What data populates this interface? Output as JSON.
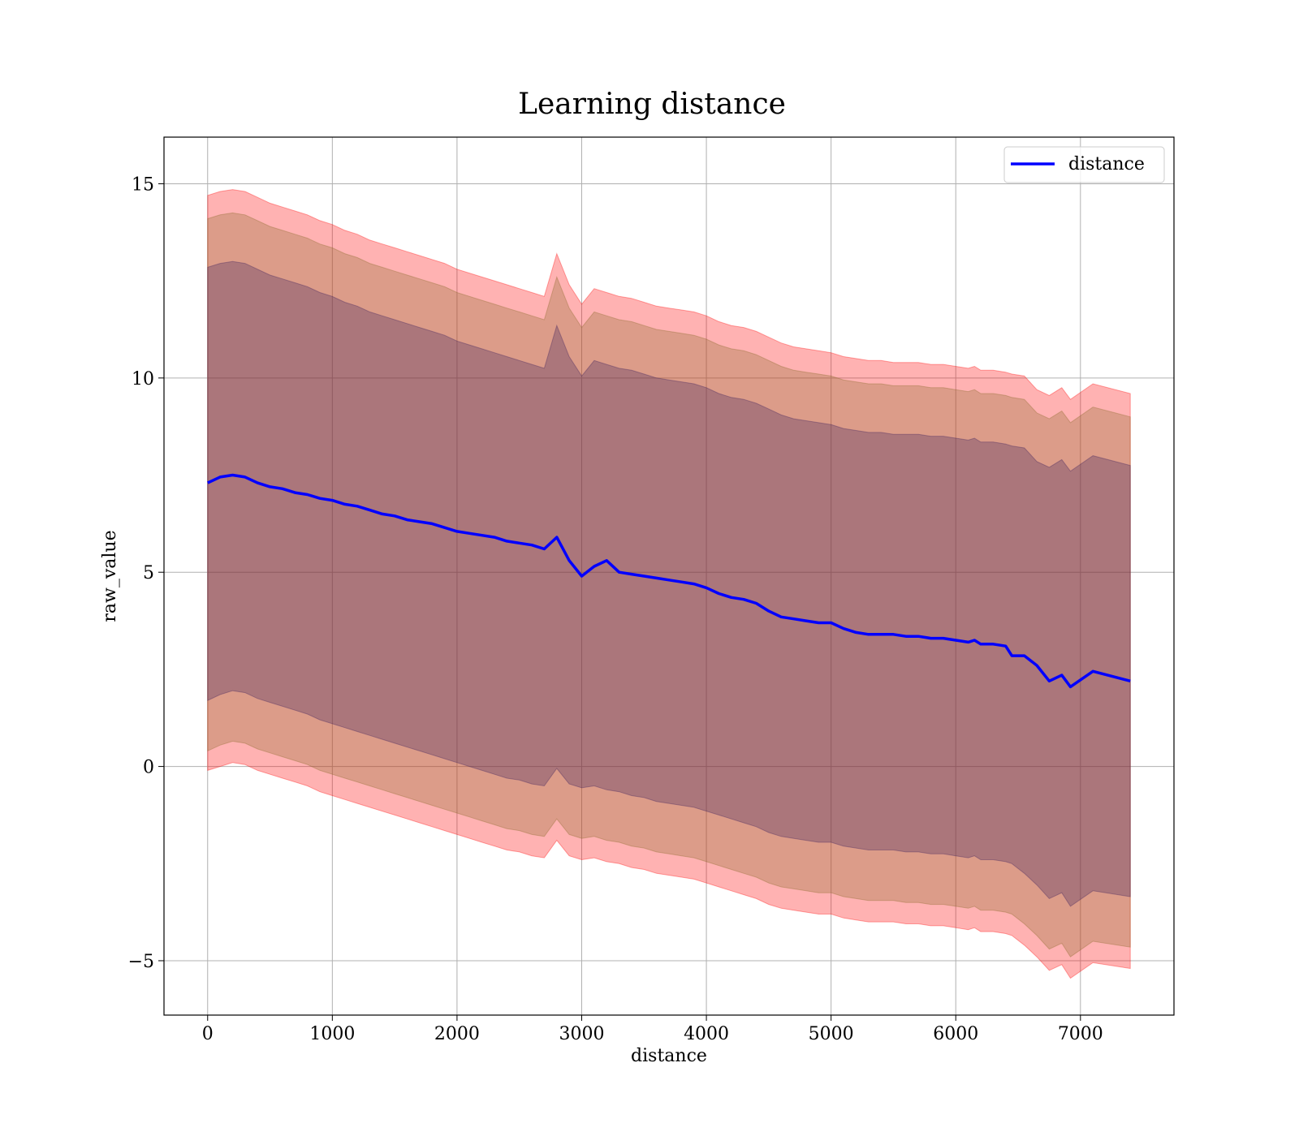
{
  "chart_data": {
    "type": "line",
    "title": "Learning distance",
    "xlabel": "distance",
    "ylabel": "raw_value",
    "xlim": [
      -350,
      7750
    ],
    "ylim": [
      -6.4,
      16.2
    ],
    "xticks": [
      0,
      1000,
      2000,
      3000,
      4000,
      5000,
      6000,
      7000
    ],
    "yticks": [
      -5,
      0,
      5,
      10,
      15
    ],
    "xtick_labels": [
      "0",
      "1000",
      "2000",
      "3000",
      "4000",
      "5000",
      "6000",
      "7000"
    ],
    "ytick_labels": [
      "−5",
      "0",
      "5",
      "10",
      "15"
    ],
    "grid": true,
    "legend_position": "top-right",
    "colors": {
      "line": "#0000ff",
      "band": "#ff0000",
      "band_inner": "#3d1f5c",
      "band_mid": "#8a6a2a",
      "grid": "#b0b0b0"
    },
    "series": [
      {
        "name": "distance",
        "x": [
          0,
          100,
          200,
          300,
          400,
          500,
          600,
          700,
          800,
          900,
          1000,
          1100,
          1200,
          1300,
          1400,
          1500,
          1600,
          1700,
          1800,
          1900,
          2000,
          2100,
          2200,
          2300,
          2400,
          2500,
          2600,
          2700,
          2800,
          2900,
          3000,
          3100,
          3200,
          3300,
          3400,
          3500,
          3600,
          3700,
          3800,
          3900,
          4000,
          4100,
          4200,
          4300,
          4400,
          4500,
          4600,
          4700,
          4800,
          4900,
          5000,
          5100,
          5200,
          5300,
          5400,
          5500,
          5600,
          5700,
          5800,
          5900,
          6000,
          6100,
          6150,
          6200,
          6300,
          6400,
          6450,
          6550,
          6650,
          6750,
          6850,
          6920,
          7100,
          7400
        ],
        "y": [
          7.3,
          7.45,
          7.5,
          7.45,
          7.3,
          7.2,
          7.15,
          7.05,
          7.0,
          6.9,
          6.85,
          6.75,
          6.7,
          6.6,
          6.5,
          6.45,
          6.35,
          6.3,
          6.25,
          6.15,
          6.05,
          6.0,
          5.95,
          5.9,
          5.8,
          5.75,
          5.7,
          5.6,
          5.9,
          5.3,
          4.9,
          5.15,
          5.3,
          5.0,
          4.95,
          4.9,
          4.85,
          4.8,
          4.75,
          4.7,
          4.6,
          4.45,
          4.35,
          4.3,
          4.2,
          4.0,
          3.85,
          3.8,
          3.75,
          3.7,
          3.7,
          3.55,
          3.45,
          3.4,
          3.4,
          3.4,
          3.35,
          3.35,
          3.3,
          3.3,
          3.25,
          3.2,
          3.25,
          3.15,
          3.15,
          3.1,
          2.85,
          2.85,
          2.6,
          2.2,
          2.35,
          2.05,
          2.45,
          2.2
        ]
      }
    ],
    "bands": [
      {
        "label": "outer",
        "upper": [
          14.7,
          14.8,
          14.85,
          14.8,
          14.65,
          14.5,
          14.4,
          14.3,
          14.2,
          14.05,
          13.95,
          13.8,
          13.7,
          13.55,
          13.45,
          13.35,
          13.25,
          13.15,
          13.05,
          12.95,
          12.8,
          12.7,
          12.6,
          12.5,
          12.4,
          12.3,
          12.2,
          12.1,
          13.2,
          12.4,
          11.9,
          12.3,
          12.2,
          12.1,
          12.05,
          11.95,
          11.85,
          11.8,
          11.75,
          11.7,
          11.6,
          11.45,
          11.35,
          11.3,
          11.2,
          11.05,
          10.9,
          10.8,
          10.75,
          10.7,
          10.65,
          10.55,
          10.5,
          10.45,
          10.45,
          10.4,
          10.4,
          10.4,
          10.35,
          10.35,
          10.3,
          10.25,
          10.3,
          10.2,
          10.2,
          10.15,
          10.1,
          10.05,
          9.7,
          9.55,
          9.75,
          9.45,
          9.85,
          9.6
        ],
        "lower": [
          -0.1,
          0.0,
          0.1,
          0.05,
          -0.1,
          -0.2,
          -0.3,
          -0.4,
          -0.5,
          -0.65,
          -0.75,
          -0.85,
          -0.95,
          -1.05,
          -1.15,
          -1.25,
          -1.35,
          -1.45,
          -1.55,
          -1.65,
          -1.75,
          -1.85,
          -1.95,
          -2.05,
          -2.15,
          -2.2,
          -2.3,
          -2.35,
          -1.9,
          -2.3,
          -2.4,
          -2.35,
          -2.45,
          -2.5,
          -2.6,
          -2.65,
          -2.75,
          -2.8,
          -2.85,
          -2.9,
          -3.0,
          -3.1,
          -3.2,
          -3.3,
          -3.4,
          -3.55,
          -3.65,
          -3.7,
          -3.75,
          -3.8,
          -3.8,
          -3.9,
          -3.95,
          -4.0,
          -4.0,
          -4.0,
          -4.05,
          -4.05,
          -4.1,
          -4.1,
          -4.15,
          -4.2,
          -4.15,
          -4.25,
          -4.25,
          -4.3,
          -4.35,
          -4.6,
          -4.9,
          -5.25,
          -5.1,
          -5.45,
          -5.05,
          -5.2
        ]
      },
      {
        "label": "middle",
        "upper": [
          14.1,
          14.2,
          14.25,
          14.2,
          14.05,
          13.9,
          13.8,
          13.7,
          13.6,
          13.45,
          13.35,
          13.2,
          13.1,
          12.95,
          12.85,
          12.75,
          12.65,
          12.55,
          12.45,
          12.35,
          12.2,
          12.1,
          12.0,
          11.9,
          11.8,
          11.7,
          11.6,
          11.5,
          12.6,
          11.8,
          11.3,
          11.7,
          11.6,
          11.5,
          11.45,
          11.35,
          11.25,
          11.2,
          11.15,
          11.1,
          11.0,
          10.85,
          10.75,
          10.7,
          10.6,
          10.45,
          10.3,
          10.2,
          10.15,
          10.1,
          10.05,
          9.95,
          9.9,
          9.85,
          9.85,
          9.8,
          9.8,
          9.8,
          9.75,
          9.75,
          9.7,
          9.65,
          9.7,
          9.6,
          9.6,
          9.55,
          9.5,
          9.45,
          9.1,
          8.95,
          9.15,
          8.85,
          9.25,
          9.0
        ],
        "lower": [
          0.4,
          0.55,
          0.65,
          0.6,
          0.45,
          0.35,
          0.25,
          0.15,
          0.05,
          -0.1,
          -0.2,
          -0.3,
          -0.4,
          -0.5,
          -0.6,
          -0.7,
          -0.8,
          -0.9,
          -1.0,
          -1.1,
          -1.2,
          -1.3,
          -1.4,
          -1.5,
          -1.6,
          -1.65,
          -1.75,
          -1.8,
          -1.35,
          -1.75,
          -1.85,
          -1.8,
          -1.9,
          -1.95,
          -2.05,
          -2.1,
          -2.2,
          -2.25,
          -2.3,
          -2.35,
          -2.45,
          -2.55,
          -2.65,
          -2.75,
          -2.85,
          -3.0,
          -3.1,
          -3.15,
          -3.2,
          -3.25,
          -3.25,
          -3.35,
          -3.4,
          -3.45,
          -3.45,
          -3.45,
          -3.5,
          -3.5,
          -3.55,
          -3.55,
          -3.6,
          -3.65,
          -3.6,
          -3.7,
          -3.7,
          -3.75,
          -3.8,
          -4.05,
          -4.35,
          -4.7,
          -4.55,
          -4.9,
          -4.5,
          -4.65
        ]
      },
      {
        "label": "inner",
        "upper": [
          12.85,
          12.95,
          13.0,
          12.95,
          12.8,
          12.65,
          12.55,
          12.45,
          12.35,
          12.2,
          12.1,
          11.95,
          11.85,
          11.7,
          11.6,
          11.5,
          11.4,
          11.3,
          11.2,
          11.1,
          10.95,
          10.85,
          10.75,
          10.65,
          10.55,
          10.45,
          10.35,
          10.25,
          11.35,
          10.55,
          10.05,
          10.45,
          10.35,
          10.25,
          10.2,
          10.1,
          10.0,
          9.95,
          9.9,
          9.85,
          9.75,
          9.6,
          9.5,
          9.45,
          9.35,
          9.2,
          9.05,
          8.95,
          8.9,
          8.85,
          8.8,
          8.7,
          8.65,
          8.6,
          8.6,
          8.55,
          8.55,
          8.55,
          8.5,
          8.5,
          8.45,
          8.4,
          8.45,
          8.35,
          8.35,
          8.3,
          8.25,
          8.2,
          7.85,
          7.7,
          7.9,
          7.6,
          8.0,
          7.75
        ],
        "lower": [
          1.7,
          1.85,
          1.95,
          1.9,
          1.75,
          1.65,
          1.55,
          1.45,
          1.35,
          1.2,
          1.1,
          1.0,
          0.9,
          0.8,
          0.7,
          0.6,
          0.5,
          0.4,
          0.3,
          0.2,
          0.1,
          0.0,
          -0.1,
          -0.2,
          -0.3,
          -0.35,
          -0.45,
          -0.5,
          -0.05,
          -0.45,
          -0.55,
          -0.5,
          -0.6,
          -0.65,
          -0.75,
          -0.8,
          -0.9,
          -0.95,
          -1.0,
          -1.05,
          -1.15,
          -1.25,
          -1.35,
          -1.45,
          -1.55,
          -1.7,
          -1.8,
          -1.85,
          -1.9,
          -1.95,
          -1.95,
          -2.05,
          -2.1,
          -2.15,
          -2.15,
          -2.15,
          -2.2,
          -2.2,
          -2.25,
          -2.25,
          -2.3,
          -2.35,
          -2.3,
          -2.4,
          -2.4,
          -2.45,
          -2.5,
          -2.75,
          -3.05,
          -3.4,
          -3.25,
          -3.6,
          -3.2,
          -3.35
        ]
      }
    ]
  }
}
